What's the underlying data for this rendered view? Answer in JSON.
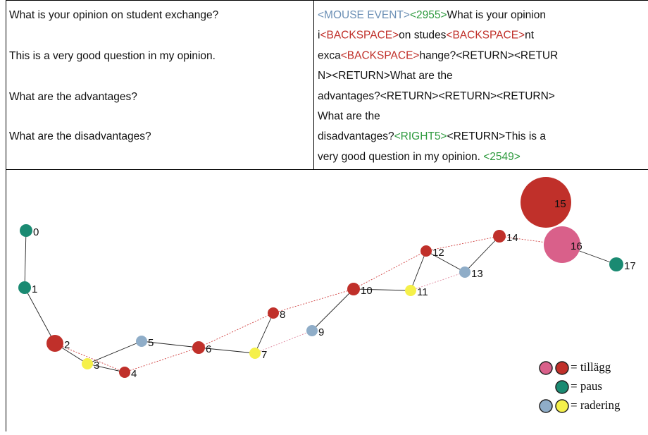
{
  "table": {
    "left": [
      "What is your opinion on student exchange?",
      "This is a very good question in my opinion.",
      "What are the advantages?",
      "What are the disadvantages?"
    ],
    "right": [
      [
        {
          "text": "<MOUSE EVENT>",
          "color": "#6b8fb5"
        },
        {
          "text": "<2955>",
          "color": "#2e9a3e"
        },
        {
          "text": "What is your opinion",
          "color": "#111111"
        }
      ],
      [
        {
          "text": "i",
          "color": "#111111"
        },
        {
          "text": "<BACKSPACE>",
          "color": "#c0302a"
        },
        {
          "text": "on studes",
          "color": "#111111"
        },
        {
          "text": "<BACKSPACE>",
          "color": "#c0302a"
        },
        {
          "text": "nt",
          "color": "#111111"
        }
      ],
      [
        {
          "text": "exca",
          "color": "#111111"
        },
        {
          "text": "<BACKSPACE>",
          "color": "#c0302a"
        },
        {
          "text": "hange?<RETURN><RETUR",
          "color": "#111111"
        }
      ],
      [
        {
          "text": "N><RETURN>What are the",
          "color": "#111111"
        }
      ],
      [
        {
          "text": "advantages?<RETURN><RETURN><RETURN>",
          "color": "#111111"
        }
      ],
      [
        {
          "text": "What are the",
          "color": "#111111"
        }
      ],
      [
        {
          "text": "disadvantages?",
          "color": "#111111"
        },
        {
          "text": "<RIGHT5>",
          "color": "#2e9a3e"
        },
        {
          "text": "<RETURN>This is a",
          "color": "#111111"
        }
      ],
      [
        {
          "text": "very good question in my opinion. ",
          "color": "#111111"
        },
        {
          "text": "<2549>",
          "color": "#2e9a3e"
        }
      ]
    ]
  },
  "graph": {
    "nodes": [
      {
        "label": "0",
        "color": "#1a8a72"
      },
      {
        "label": "1",
        "color": "#1a8a72"
      },
      {
        "label": "2",
        "color": "#c0302a"
      },
      {
        "label": "3",
        "color": "#f5f04a"
      },
      {
        "label": "4",
        "color": "#c0302a"
      },
      {
        "label": "5",
        "color": "#8fadc8"
      },
      {
        "label": "6",
        "color": "#c0302a"
      },
      {
        "label": "7",
        "color": "#f5f04a"
      },
      {
        "label": "8",
        "color": "#c0302a"
      },
      {
        "label": "9",
        "color": "#8fadc8"
      },
      {
        "label": "10",
        "color": "#c0302a"
      },
      {
        "label": "11",
        "color": "#f5f04a"
      },
      {
        "label": "12",
        "color": "#c0302a"
      },
      {
        "label": "13",
        "color": "#8fadc8"
      },
      {
        "label": "14",
        "color": "#c0302a"
      },
      {
        "label": "15",
        "color": "#c0302a"
      },
      {
        "label": "16",
        "color": "#d9608a"
      },
      {
        "label": "17",
        "color": "#1a8a72"
      }
    ],
    "legend": [
      {
        "label": "= tillägg",
        "colors": [
          "#d9608a",
          "#c0302a"
        ]
      },
      {
        "label": "= paus",
        "colors": [
          "#1a8a72"
        ]
      },
      {
        "label": "= radering",
        "colors": [
          "#8fadc8",
          "#f5f04a"
        ]
      }
    ]
  }
}
